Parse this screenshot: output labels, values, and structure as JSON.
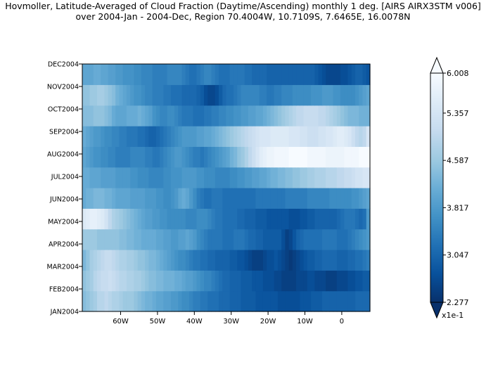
{
  "chart_data": {
    "type": "heatmap",
    "title": "Hovmoller, Latitude-Averaged of Cloud Fraction (Daytime/Ascending) monthly 1 deg. [AIRS AIRX3STM v006]",
    "subtitle": "over 2004-Jan - 2004-Dec, Region 70.4004W, 10.7109S, 7.6465E, 16.0078N",
    "x_axis": {
      "range": [
        -70.4004,
        7.6465
      ],
      "ticks": [
        -60,
        -50,
        -40,
        -30,
        -20,
        -10,
        0
      ],
      "tick_labels": [
        "60W",
        "50W",
        "40W",
        "30W",
        "20W",
        "10W",
        "0"
      ]
    },
    "y_axis": {
      "tick_labels": [
        "JAN2004",
        "FEB2004",
        "MAR2004",
        "APR2004",
        "MAY2004",
        "JUN2004",
        "JUL2004",
        "AUG2004",
        "SEP2004",
        "OCT2004",
        "NOV2004",
        "DEC2004"
      ]
    },
    "colorbar": {
      "min": 2.277,
      "max": 6.008,
      "tick_labels": [
        "6.008",
        "5.357",
        "4.587",
        "3.817",
        "3.047",
        "2.277"
      ],
      "tick_values": [
        6.008,
        5.357,
        4.587,
        3.817,
        3.047,
        2.277
      ],
      "units": "x1e-1",
      "colors": [
        "#08306b",
        "#08519c",
        "#2171b5",
        "#4292c6",
        "#6baed6",
        "#9ecae1",
        "#c6dbef",
        "#deebf7",
        "#f7fbff"
      ]
    },
    "x_labels_per_row_note": null,
    "longitudes": [
      -69.9,
      -68.9,
      -67.9,
      -66.9,
      -65.9,
      -64.9,
      -63.9,
      -62.9,
      -61.9,
      -60.9,
      -59.9,
      -58.9,
      -57.9,
      -56.9,
      -55.9,
      -54.9,
      -53.9,
      -52.9,
      -51.9,
      -50.9,
      -49.9,
      -48.9,
      -47.9,
      -46.9,
      -45.9,
      -44.9,
      -43.9,
      -42.9,
      -41.9,
      -40.9,
      -39.9,
      -38.9,
      -37.9,
      -36.9,
      -35.9,
      -34.9,
      -33.9,
      -32.9,
      -31.9,
      -30.9,
      -29.9,
      -28.9,
      -27.9,
      -26.9,
      -25.9,
      -24.9,
      -23.9,
      -22.9,
      -21.9,
      -20.9,
      -19.9,
      -18.9,
      -17.9,
      -16.9,
      -15.9,
      -14.9,
      -13.9,
      -12.9,
      -11.9,
      -10.9,
      -9.9,
      -8.9,
      -7.9,
      -6.9,
      -5.9,
      -4.9,
      -3.9,
      -2.9,
      -1.9,
      -0.9,
      0.1,
      1.1,
      2.1,
      3.1,
      4.1,
      5.1,
      6.1,
      7.1
    ],
    "rows": [
      {
        "month": "JAN2004",
        "values": [
          4.4,
          4.5,
          4.6,
          4.7,
          4.9,
          4.9,
          5.0,
          4.9,
          4.8,
          4.8,
          4.7,
          4.6,
          4.6,
          4.6,
          4.5,
          4.4,
          4.3,
          4.2,
          4.2,
          4.1,
          4.0,
          4.0,
          3.9,
          3.9,
          3.8,
          3.8,
          3.7,
          3.6,
          3.6,
          3.5,
          3.4,
          3.4,
          3.3,
          3.3,
          3.2,
          3.2,
          3.2,
          3.1,
          3.1,
          3.1,
          3.0,
          3.0,
          3.0,
          2.9,
          2.9,
          2.9,
          2.9,
          2.8,
          2.8,
          2.8,
          2.8,
          2.8,
          2.8,
          2.7,
          2.7,
          2.7,
          2.7,
          2.7,
          2.7,
          2.8,
          2.8,
          2.8,
          2.9,
          2.9,
          2.9,
          3.0,
          3.0,
          3.0,
          3.0,
          3.0,
          3.0,
          3.0,
          3.0,
          3.0,
          3.1,
          3.1,
          3.1,
          3.1
        ]
      },
      {
        "month": "FEB2004",
        "values": [
          4.5,
          4.6,
          4.7,
          4.9,
          5.0,
          5.1,
          5.1,
          5.2,
          5.1,
          5.0,
          4.9,
          4.9,
          4.8,
          4.8,
          4.7,
          4.7,
          4.6,
          4.5,
          4.4,
          4.4,
          4.3,
          4.3,
          4.2,
          4.2,
          4.2,
          4.1,
          4.1,
          4.0,
          3.9,
          3.9,
          3.8,
          3.7,
          3.6,
          3.5,
          3.5,
          3.4,
          3.3,
          3.2,
          3.1,
          3.1,
          3.0,
          3.0,
          3.0,
          2.9,
          2.9,
          2.9,
          2.8,
          2.8,
          2.8,
          2.7,
          2.7,
          2.7,
          2.6,
          2.6,
          2.5,
          2.5,
          2.5,
          2.5,
          2.6,
          2.6,
          2.6,
          2.7,
          2.7,
          2.6,
          2.6,
          2.6,
          2.5,
          2.5,
          2.5,
          2.6,
          2.6,
          2.6,
          2.7,
          2.7,
          2.8,
          2.8,
          2.9,
          2.9
        ]
      },
      {
        "month": "MAR2004",
        "values": [
          4.3,
          4.5,
          4.7,
          4.8,
          4.9,
          5.0,
          5.1,
          5.1,
          5.0,
          4.9,
          4.8,
          4.8,
          4.7,
          4.7,
          4.6,
          4.5,
          4.5,
          4.4,
          4.3,
          4.3,
          4.2,
          4.1,
          4.0,
          3.9,
          3.8,
          3.7,
          3.6,
          3.6,
          3.5,
          3.4,
          3.3,
          3.3,
          3.2,
          3.2,
          3.1,
          3.1,
          3.0,
          3.0,
          3.0,
          3.0,
          2.9,
          2.9,
          2.8,
          2.8,
          2.7,
          2.6,
          2.5,
          2.5,
          2.5,
          2.6,
          2.7,
          2.7,
          2.8,
          2.7,
          2.6,
          2.5,
          2.4,
          2.5,
          2.6,
          2.7,
          2.8,
          2.9,
          2.9,
          3.0,
          3.0,
          3.1,
          3.1,
          3.1,
          3.1,
          3.0,
          3.0,
          3.0,
          3.1,
          3.1,
          3.2,
          3.2,
          3.3,
          3.4
        ]
      },
      {
        "month": "APR2004",
        "values": [
          4.6,
          4.6,
          4.6,
          4.6,
          4.5,
          4.5,
          4.5,
          4.5,
          4.5,
          4.5,
          4.4,
          4.4,
          4.3,
          4.3,
          4.2,
          4.2,
          4.1,
          4.1,
          4.1,
          4.1,
          4.0,
          4.0,
          3.9,
          3.9,
          3.8,
          3.8,
          3.9,
          3.9,
          4.0,
          3.9,
          3.8,
          3.6,
          3.5,
          3.4,
          3.3,
          3.3,
          3.3,
          3.3,
          3.2,
          3.2,
          3.2,
          3.3,
          3.3,
          3.3,
          3.2,
          3.1,
          3.1,
          3.0,
          3.0,
          2.9,
          2.9,
          2.9,
          2.9,
          2.9,
          2.7,
          2.5,
          2.6,
          2.8,
          3.0,
          3.1,
          3.2,
          3.2,
          3.2,
          3.2,
          3.2,
          3.3,
          3.3,
          3.3,
          3.3,
          3.2,
          3.2,
          3.2,
          3.3,
          3.4,
          3.5,
          3.6,
          3.7,
          3.8
        ]
      },
      {
        "month": "MAY2004",
        "values": [
          5.5,
          5.6,
          5.7,
          5.7,
          5.6,
          5.5,
          5.3,
          5.0,
          4.8,
          4.7,
          4.6,
          4.5,
          4.4,
          4.3,
          4.2,
          4.1,
          4.0,
          3.9,
          3.9,
          3.8,
          3.8,
          3.7,
          3.7,
          3.6,
          3.6,
          3.6,
          3.6,
          3.6,
          3.5,
          3.5,
          3.5,
          3.6,
          3.6,
          3.6,
          3.5,
          3.4,
          3.3,
          3.3,
          3.2,
          3.2,
          3.2,
          3.2,
          3.1,
          3.1,
          3.0,
          3.0,
          3.0,
          2.9,
          2.9,
          2.9,
          2.8,
          2.8,
          2.8,
          2.8,
          2.8,
          2.8,
          2.7,
          2.7,
          2.7,
          2.8,
          2.8,
          2.9,
          2.9,
          3.0,
          3.0,
          3.0,
          3.0,
          3.0,
          3.0,
          3.1,
          3.2,
          3.3,
          3.3,
          3.3,
          3.2,
          3.1,
          3.2,
          3.8
        ]
      },
      {
        "month": "JUN2004",
        "values": [
          4.1,
          4.2,
          4.2,
          4.3,
          4.3,
          4.3,
          4.2,
          4.2,
          4.1,
          4.0,
          4.0,
          4.0,
          4.0,
          3.9,
          3.9,
          3.9,
          3.9,
          3.8,
          3.8,
          3.8,
          3.7,
          3.7,
          3.6,
          3.6,
          3.7,
          3.8,
          4.0,
          4.1,
          4.0,
          3.8,
          3.6,
          3.4,
          3.3,
          3.2,
          3.2,
          3.3,
          3.3,
          3.3,
          3.2,
          3.2,
          3.2,
          3.2,
          3.2,
          3.2,
          3.2,
          3.2,
          3.2,
          3.3,
          3.3,
          3.3,
          3.3,
          3.3,
          3.3,
          3.3,
          3.3,
          3.4,
          3.4,
          3.4,
          3.4,
          3.4,
          3.4,
          3.5,
          3.5,
          3.5,
          3.5,
          3.5,
          3.5,
          3.6,
          3.6,
          3.6,
          3.6,
          3.6,
          3.6,
          3.7,
          3.7,
          3.8,
          3.9,
          4.0
        ]
      },
      {
        "month": "JUL2004",
        "values": [
          4.1,
          4.1,
          4.0,
          4.0,
          4.0,
          3.9,
          3.9,
          3.9,
          3.9,
          3.8,
          3.8,
          3.8,
          3.8,
          3.7,
          3.7,
          3.6,
          3.6,
          3.6,
          3.5,
          3.5,
          3.5,
          3.5,
          3.6,
          3.6,
          3.7,
          3.7,
          3.7,
          3.8,
          3.8,
          3.8,
          3.8,
          3.7,
          3.7,
          3.6,
          3.6,
          3.6,
          3.5,
          3.5,
          3.5,
          3.5,
          3.6,
          3.6,
          3.7,
          3.7,
          3.8,
          3.8,
          3.9,
          3.9,
          4.0,
          4.0,
          4.1,
          4.2,
          4.2,
          4.3,
          4.3,
          4.4,
          4.4,
          4.5,
          4.5,
          4.6,
          4.6,
          4.7,
          4.7,
          4.8,
          4.8,
          4.8,
          4.9,
          4.9,
          4.9,
          5.0,
          5.0,
          5.1,
          5.1,
          5.2,
          5.3,
          5.3,
          5.4,
          5.4
        ]
      },
      {
        "month": "AUG2004",
        "values": [
          4.0,
          3.9,
          3.8,
          3.7,
          3.7,
          3.6,
          3.6,
          3.5,
          3.5,
          3.4,
          3.4,
          3.4,
          3.4,
          3.5,
          3.5,
          3.5,
          3.5,
          3.4,
          3.4,
          3.3,
          3.3,
          3.4,
          3.5,
          3.6,
          3.7,
          3.8,
          3.8,
          3.7,
          3.6,
          3.5,
          3.4,
          3.4,
          3.3,
          3.4,
          3.5,
          3.6,
          3.7,
          3.8,
          3.9,
          4.0,
          4.2,
          4.3,
          4.5,
          4.6,
          4.8,
          5.0,
          5.2,
          5.4,
          5.6,
          5.7,
          5.8,
          5.8,
          5.9,
          5.9,
          5.9,
          5.9,
          6.0,
          6.0,
          6.0,
          6.0,
          6.0,
          5.9,
          5.9,
          5.9,
          5.9,
          5.9,
          5.8,
          5.8,
          5.8,
          5.8,
          5.8,
          5.9,
          5.9,
          5.9,
          5.9,
          6.0,
          6.0,
          6.0
        ]
      },
      {
        "month": "SEP2004",
        "values": [
          4.1,
          4.0,
          3.9,
          3.8,
          3.8,
          3.7,
          3.6,
          3.6,
          3.5,
          3.5,
          3.4,
          3.4,
          3.3,
          3.3,
          3.3,
          3.2,
          3.2,
          3.1,
          3.0,
          3.0,
          3.1,
          3.2,
          3.3,
          3.4,
          3.5,
          3.6,
          3.7,
          3.8,
          3.8,
          3.8,
          3.8,
          3.9,
          3.9,
          4.0,
          4.0,
          4.1,
          4.2,
          4.3,
          4.4,
          4.5,
          4.6,
          4.7,
          4.8,
          4.9,
          5.0,
          5.1,
          5.2,
          5.3,
          5.4,
          5.4,
          5.4,
          5.5,
          5.5,
          5.5,
          5.5,
          5.5,
          5.4,
          5.4,
          5.4,
          5.3,
          5.3,
          5.2,
          5.2,
          5.2,
          5.3,
          5.3,
          5.4,
          5.4,
          5.5,
          5.6,
          5.6,
          5.5,
          5.4,
          5.2,
          5.0,
          4.9,
          5.0,
          5.4
        ]
      },
      {
        "month": "OCT2004",
        "values": [
          4.4,
          4.4,
          4.4,
          4.5,
          4.5,
          4.5,
          4.4,
          4.3,
          4.1,
          4.0,
          4.0,
          4.0,
          4.1,
          4.1,
          4.1,
          4.2,
          4.1,
          4.0,
          3.9,
          3.7,
          3.6,
          3.5,
          3.5,
          3.6,
          3.6,
          3.5,
          3.4,
          3.3,
          3.3,
          3.3,
          3.2,
          3.2,
          3.2,
          3.3,
          3.3,
          3.4,
          3.4,
          3.5,
          3.5,
          3.6,
          3.6,
          3.7,
          3.7,
          3.8,
          3.8,
          3.9,
          3.9,
          4.0,
          4.0,
          4.1,
          4.2,
          4.3,
          4.4,
          4.5,
          4.6,
          4.7,
          4.8,
          4.9,
          5.0,
          5.0,
          5.1,
          5.1,
          5.1,
          5.1,
          5.0,
          5.0,
          4.9,
          4.8,
          4.7,
          4.6,
          4.5,
          4.4,
          4.3,
          4.3,
          4.3,
          4.2,
          4.2,
          4.2
        ]
      },
      {
        "month": "NOV2004",
        "values": [
          4.5,
          4.5,
          4.6,
          4.6,
          4.7,
          4.7,
          4.6,
          4.5,
          4.4,
          4.2,
          4.1,
          4.0,
          3.9,
          3.8,
          3.7,
          3.7,
          3.6,
          3.5,
          3.5,
          3.4,
          3.4,
          3.4,
          3.3,
          3.3,
          3.2,
          3.2,
          3.2,
          3.1,
          3.1,
          3.1,
          3.1,
          3.0,
          2.9,
          2.7,
          2.6,
          2.6,
          2.7,
          2.9,
          3.1,
          3.2,
          3.2,
          3.3,
          3.4,
          3.5,
          3.5,
          3.5,
          3.5,
          3.5,
          3.4,
          3.4,
          3.3,
          3.3,
          3.4,
          3.4,
          3.5,
          3.5,
          3.5,
          3.6,
          3.6,
          3.6,
          3.6,
          3.6,
          3.7,
          3.7,
          3.7,
          3.8,
          3.8,
          3.8,
          3.7,
          3.7,
          3.6,
          3.6,
          3.6,
          3.6,
          3.7,
          3.8,
          3.9,
          4.0
        ]
      },
      {
        "month": "DEC2004",
        "values": [
          4.0,
          4.0,
          4.0,
          4.1,
          4.1,
          4.0,
          4.0,
          3.9,
          3.9,
          3.8,
          3.8,
          3.7,
          3.7,
          3.7,
          3.6,
          3.6,
          3.5,
          3.5,
          3.5,
          3.4,
          3.4,
          3.4,
          3.4,
          3.5,
          3.5,
          3.5,
          3.5,
          3.4,
          3.3,
          3.2,
          3.2,
          3.3,
          3.4,
          3.5,
          3.5,
          3.4,
          3.3,
          3.2,
          3.2,
          3.2,
          3.3,
          3.3,
          3.3,
          3.3,
          3.2,
          3.2,
          3.1,
          3.1,
          3.1,
          3.1,
          3.0,
          3.0,
          3.0,
          3.0,
          3.0,
          3.0,
          3.0,
          3.0,
          3.0,
          3.0,
          3.0,
          3.0,
          3.0,
          2.9,
          2.8,
          2.7,
          2.6,
          2.6,
          2.6,
          2.6,
          2.7,
          2.7,
          2.8,
          2.9,
          3.0,
          3.0,
          2.9,
          2.8
        ]
      }
    ]
  }
}
